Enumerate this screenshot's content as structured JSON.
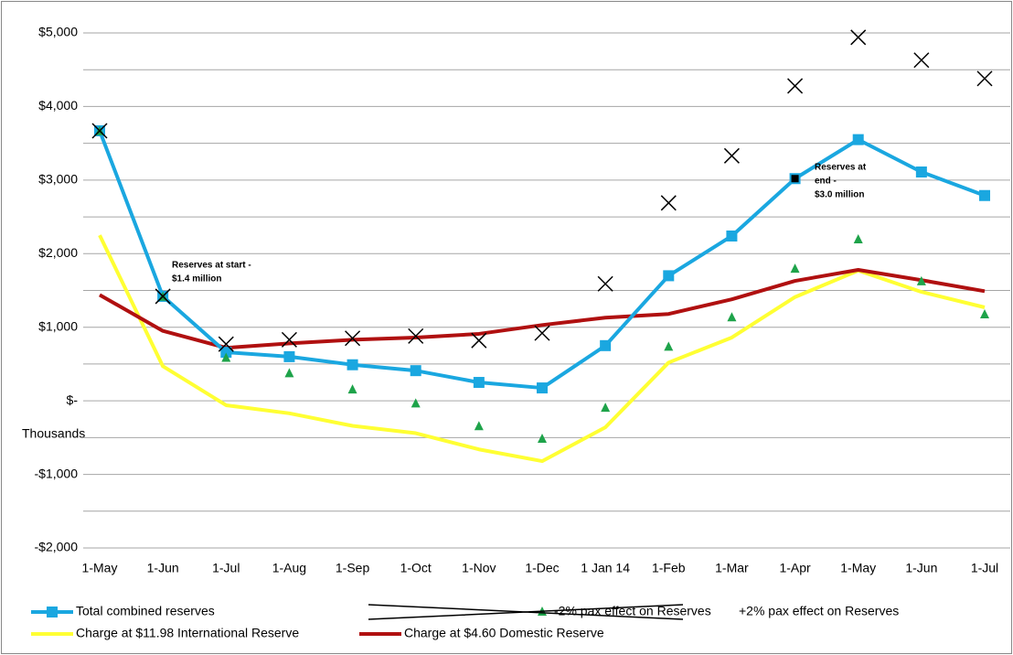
{
  "chart_data": {
    "type": "line",
    "y_label": "Thousands",
    "categories": [
      "1-May",
      "1-Jun",
      "1-Jul",
      "1-Aug",
      "1-Sep",
      "1-Oct",
      "1-Nov",
      "1-Dec",
      "1 Jan 14",
      "1-Feb",
      "1-Mar",
      "1-Apr",
      "1-May",
      "1-Jun",
      "1-Jul"
    ],
    "ylim": [
      -2000,
      5000
    ],
    "yticks": [
      {
        "value": 5000,
        "label": "$5,000"
      },
      {
        "value": 4000,
        "label": "$4,000"
      },
      {
        "value": 3000,
        "label": "$3,000"
      },
      {
        "value": 2000,
        "label": "$2,000"
      },
      {
        "value": 1000,
        "label": "$1,000"
      },
      {
        "value": 0,
        "label": "$-"
      },
      {
        "value": -1000,
        "label": "-$1,000"
      },
      {
        "value": -2000,
        "label": "-$2,000"
      }
    ],
    "grid": true,
    "series": [
      {
        "name": "Total combined reserves",
        "color": "#1aa7e0",
        "line": true,
        "marker": "square",
        "values": [
          3670,
          1420,
          660,
          600,
          490,
          410,
          250,
          175,
          750,
          1700,
          2240,
          3020,
          3550,
          3110,
          2790
        ]
      },
      {
        "name": "-2% pax  effect on Reserves",
        "color": "#1ea34a",
        "line": false,
        "marker": "triangle",
        "values": [
          3660,
          1410,
          580,
          370,
          150,
          -40,
          -350,
          -520,
          -100,
          730,
          1130,
          1790,
          2190,
          1620,
          1170
        ]
      },
      {
        "name": "+2% pax  effect on Reserves",
        "color": "#000000",
        "line": false,
        "marker": "x",
        "values": [
          3670,
          1420,
          770,
          830,
          850,
          880,
          820,
          920,
          1590,
          2690,
          3330,
          4280,
          4940,
          4630,
          4380
        ]
      },
      {
        "name": "Charge at $11.98 International Reserve",
        "color": "#ffff33",
        "line": true,
        "marker": "none",
        "values": [
          2250,
          470,
          -60,
          -170,
          -340,
          -440,
          -660,
          -820,
          -360,
          520,
          860,
          1410,
          1770,
          1480,
          1270
        ]
      },
      {
        "name": "Charge at $4.60 Domestic Reserve",
        "color": "#b01010",
        "line": true,
        "marker": "none",
        "values": [
          1440,
          950,
          720,
          780,
          830,
          860,
          910,
          1030,
          1130,
          1180,
          1380,
          1630,
          1780,
          1640,
          1490
        ]
      }
    ],
    "annotations": [
      [
        "Reserves at start  -",
        "$1.4 million"
      ],
      [
        "Reserves at",
        "end -",
        "$3.0 million"
      ]
    ]
  }
}
